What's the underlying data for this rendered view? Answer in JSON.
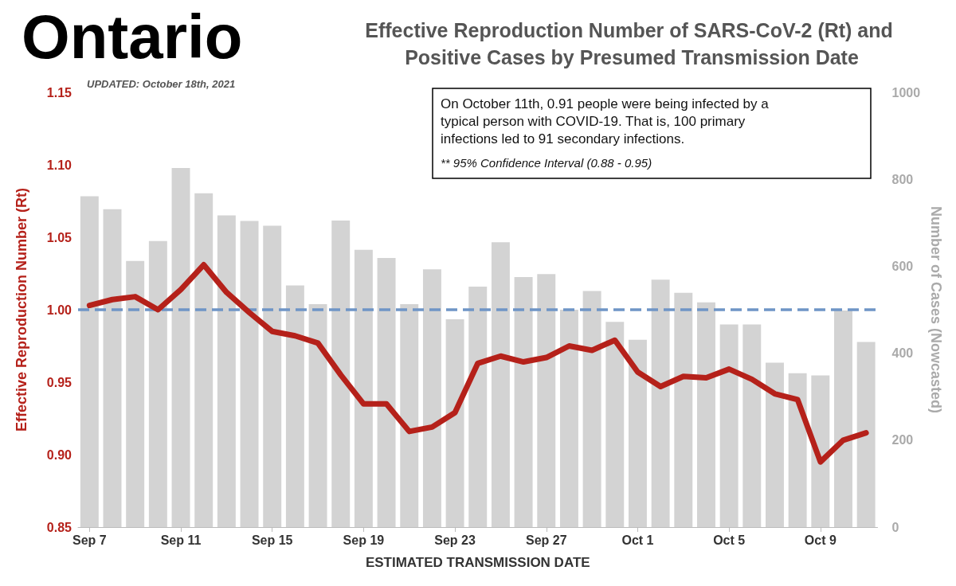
{
  "chart_data": {
    "type": "bar",
    "title": "Ontario",
    "subtitle": "Effective Reproduction Number of SARS-CoV-2 (Rt) and Positive Cases by Presumed Transmission Date",
    "annotations": [
      "UPDATED: October 18th, 2021",
      "On October 11th, 0.91 people were being infected by a typical person with COVID-19. That is, 100 primary infections led to 91 secondary infections.",
      "** 95% Confidence Interval (0.88 - 0.95)"
    ],
    "xlabel": "ESTIMATED TRANSMISSION DATE",
    "ylabel": "Effective Reproduction Number (Rt)",
    "y2label": "Number of Cases (Nowcasted)",
    "categories": [
      "Sep 7",
      null,
      null,
      null,
      "Sep 11",
      null,
      null,
      null,
      "Sep 15",
      null,
      null,
      null,
      "Sep 19",
      null,
      null,
      null,
      "Sep 23",
      null,
      null,
      null,
      "Sep 27",
      null,
      null,
      null,
      "Oct 1",
      null,
      null,
      null,
      "Oct 5",
      null,
      null,
      null,
      "Oct 9",
      null,
      null
    ],
    "series": [
      {
        "axis": "y2",
        "color": "#d3d3d3",
        "values": [
          761,
          731,
          612,
          658,
          826,
          768,
          717,
          704,
          693,
          556,
          513,
          705,
          638,
          619,
          513,
          593,
          478,
          553,
          655,
          575,
          582,
          500,
          543,
          472,
          431,
          569,
          539,
          517,
          466,
          466,
          378,
          354,
          349,
          498,
          426
        ]
      },
      {
        "type": "line",
        "color": "#b5211a",
        "values": [
          1.003,
          1.007,
          1.009,
          1.0,
          1.014,
          1.031,
          1.012,
          0.998,
          0.985,
          0.982,
          0.977,
          0.955,
          0.935,
          0.935,
          0.916,
          0.919,
          0.929,
          0.963,
          0.968,
          0.964,
          0.967,
          0.975,
          0.972,
          0.979,
          0.957,
          0.947,
          0.954,
          0.953,
          0.959,
          0.952,
          0.942,
          0.938,
          0.895,
          0.91,
          0.915
        ]
      }
    ],
    "ylim": [
      0.85,
      1.15
    ],
    "yticks": [
      {
        "value": 0.85,
        "label": "0.85"
      },
      {
        "value": 0.9,
        "label": "0.90"
      },
      {
        "value": 0.95,
        "label": "0.95"
      },
      {
        "value": 1.0,
        "label": "1.00"
      },
      {
        "value": 1.05,
        "label": "1.05"
      },
      {
        "value": 1.1,
        "label": "1.10"
      },
      {
        "value": 1.15,
        "label": "1.15"
      }
    ],
    "y2lim": [
      0,
      1000
    ],
    "y2ticks": [
      0,
      200,
      400,
      600,
      800,
      1000
    ],
    "ref_lines": [
      {
        "axis": "y",
        "value": 1.0,
        "color": "#6f95c6",
        "line_style": "dashed"
      }
    ],
    "line_style": "solid",
    "marker": "none",
    "grid": false
  }
}
